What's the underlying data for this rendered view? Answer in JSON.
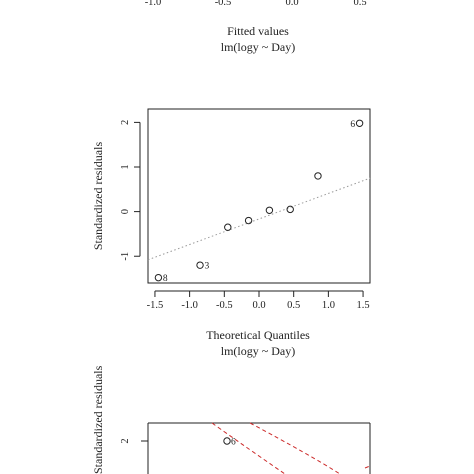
{
  "chart_data": [
    {
      "panel": "residuals-vs-fitted",
      "type": "scatter",
      "visible_tick_labels_x": [
        "-1.0",
        "-0.5",
        "0.0",
        "0.5"
      ],
      "xlabel": "Fitted values",
      "subtitle": "lm(logy ~ Day)"
    },
    {
      "panel": "normal-qq",
      "type": "scatter",
      "xlabel": "Theoretical Quantiles",
      "ylabel": "Standardized residuals",
      "subtitle": "lm(logy ~ Day)",
      "xlim": [
        -1.6,
        1.6
      ],
      "ylim": [
        -1.6,
        2.3
      ],
      "xticks": [
        "-1.5",
        "-1.0",
        "-0.5",
        "0.0",
        "0.5",
        "1.0",
        "1.5"
      ],
      "yticks": [
        "-1",
        "0",
        "1",
        "2"
      ],
      "points": [
        {
          "x": -1.45,
          "y": -1.48,
          "label": "8"
        },
        {
          "x": -0.85,
          "y": -1.2,
          "label": "3"
        },
        {
          "x": -0.45,
          "y": -0.35,
          "label": ""
        },
        {
          "x": -0.15,
          "y": -0.2,
          "label": ""
        },
        {
          "x": 0.15,
          "y": 0.03,
          "label": ""
        },
        {
          "x": 0.45,
          "y": 0.05,
          "label": ""
        },
        {
          "x": 0.85,
          "y": 0.8,
          "label": ""
        },
        {
          "x": 1.45,
          "y": 1.98,
          "label": "6"
        }
      ],
      "reference_line": {
        "x": [
          -1.6,
          1.6
        ],
        "y": [
          -1.08,
          0.75
        ],
        "style": "dotted",
        "color": "#9a9a9a"
      }
    },
    {
      "panel": "residuals-vs-leverage",
      "type": "scatter",
      "ylabel": "Standardized residuals",
      "ylim_top": 2,
      "points": [
        {
          "x": 0.0,
          "y": 2,
          "label": "6"
        }
      ],
      "cooks_distance_color": "#cc2b2b"
    }
  ]
}
